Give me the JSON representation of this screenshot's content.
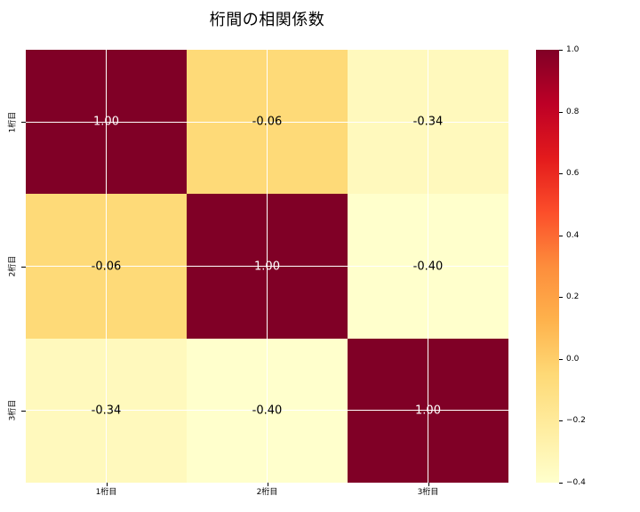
{
  "title": "桁間の相関係数",
  "chart_data": {
    "type": "heatmap",
    "title": "桁間の相関係数",
    "x_tick_labels": [
      "1桁目",
      "2桁目",
      "3桁目"
    ],
    "y_tick_labels": [
      "1桁目",
      "2桁目",
      "3桁目"
    ],
    "matrix": [
      [
        1.0,
        -0.06,
        -0.34
      ],
      [
        -0.06,
        1.0,
        -0.4
      ],
      [
        -0.34,
        -0.4,
        1.0
      ]
    ],
    "annotations": [
      [
        "1.00",
        "-0.06",
        "-0.34"
      ],
      [
        "-0.06",
        "1.00",
        "-0.40"
      ],
      [
        "-0.34",
        "-0.40",
        "1.00"
      ]
    ],
    "cell_colors": [
      [
        "#800026",
        "#feda78",
        "#fff9bd"
      ],
      [
        "#feda78",
        "#800026",
        "#ffffcc"
      ],
      [
        "#fff9bd",
        "#ffffcc",
        "#800026"
      ]
    ],
    "annotation_colors": [
      [
        "#ffffff",
        "#000000",
        "#000000"
      ],
      [
        "#000000",
        "#ffffff",
        "#000000"
      ],
      [
        "#000000",
        "#000000",
        "#ffffff"
      ]
    ],
    "vmin": -0.4,
    "vmax": 1.0,
    "colormap": "YlOrRd",
    "grid": true,
    "grid_color": "#ffffff",
    "background_color": "#ffffff",
    "colorbar": {
      "tick_labels": [
        "1.0",
        "0.8",
        "0.6",
        "0.4",
        "0.2",
        "0.0",
        "−0.2",
        "−0.4"
      ],
      "gradient_stops_bottom_to_top": [
        "#ffffcc",
        "#ffeda0",
        "#fed976",
        "#feb24c",
        "#fd8d3c",
        "#fc4e2a",
        "#e31a1c",
        "#bd0026",
        "#800026"
      ]
    }
  }
}
